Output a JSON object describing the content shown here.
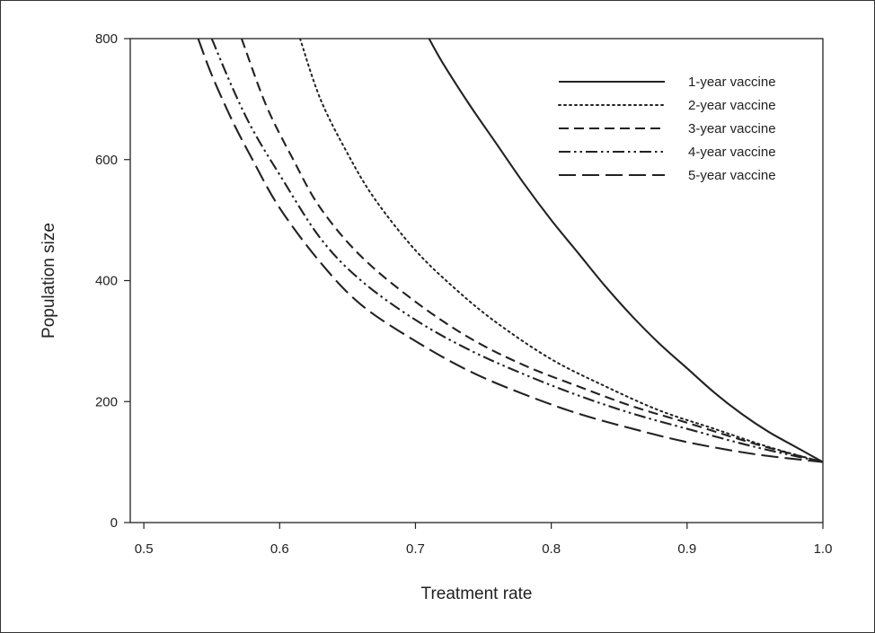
{
  "chart_data": {
    "type": "line",
    "title": "",
    "xlabel": "Treatment rate",
    "ylabel": "Population size",
    "xlim": [
      0.49,
      1.0
    ],
    "ylim": [
      0,
      800
    ],
    "xticks": [
      0.5,
      0.6,
      0.7,
      0.8,
      0.9,
      1.0
    ],
    "xtick_labels": [
      "0.5",
      "0.6",
      "0.7",
      "0.8",
      "0.9",
      "1.0"
    ],
    "yticks": [
      0,
      200,
      400,
      600,
      800
    ],
    "ytick_labels": [
      "0",
      "200",
      "400",
      "600",
      "800"
    ],
    "grid": false,
    "legend_position": "top-right",
    "colors": {
      "line": "#222222",
      "frame": "#222222",
      "background": "#ffffff"
    },
    "series": [
      {
        "name": "1-year vaccine",
        "style": "solid",
        "x": [
          0.71,
          0.72,
          0.74,
          0.76,
          0.78,
          0.8,
          0.82,
          0.84,
          0.86,
          0.88,
          0.9,
          0.92,
          0.94,
          0.96,
          0.98,
          1.0
        ],
        "y": [
          800,
          760,
          690,
          625,
          560,
          500,
          445,
          390,
          340,
          295,
          255,
          215,
          180,
          150,
          125,
          100
        ]
      },
      {
        "name": "2-year vaccine",
        "style": "dotted",
        "x": [
          0.615,
          0.63,
          0.65,
          0.67,
          0.7,
          0.73,
          0.76,
          0.8,
          0.84,
          0.88,
          0.92,
          0.96,
          1.0
        ],
        "y": [
          800,
          700,
          610,
          535,
          450,
          385,
          330,
          270,
          225,
          185,
          155,
          125,
          100
        ]
      },
      {
        "name": "3-year vaccine",
        "style": "short-dash",
        "x": [
          0.572,
          0.59,
          0.61,
          0.63,
          0.66,
          0.7,
          0.74,
          0.78,
          0.82,
          0.86,
          0.9,
          0.95,
          1.0
        ],
        "y": [
          800,
          690,
          600,
          520,
          440,
          365,
          305,
          260,
          225,
          192,
          165,
          130,
          100
        ]
      },
      {
        "name": "4-year vaccine",
        "style": "dash-dot-dot",
        "x": [
          0.55,
          0.565,
          0.58,
          0.6,
          0.63,
          0.66,
          0.7,
          0.74,
          0.78,
          0.82,
          0.86,
          0.9,
          0.95,
          1.0
        ],
        "y": [
          800,
          720,
          650,
          575,
          470,
          400,
          335,
          285,
          245,
          210,
          180,
          155,
          125,
          100
        ]
      },
      {
        "name": "5-year vaccine",
        "style": "long-dash",
        "x": [
          0.54,
          0.55,
          0.565,
          0.58,
          0.6,
          0.63,
          0.66,
          0.7,
          0.74,
          0.78,
          0.82,
          0.86,
          0.9,
          0.95,
          1.0
        ],
        "y": [
          800,
          740,
          665,
          600,
          520,
          430,
          360,
          300,
          250,
          212,
          180,
          155,
          133,
          113,
          100
        ]
      }
    ]
  }
}
